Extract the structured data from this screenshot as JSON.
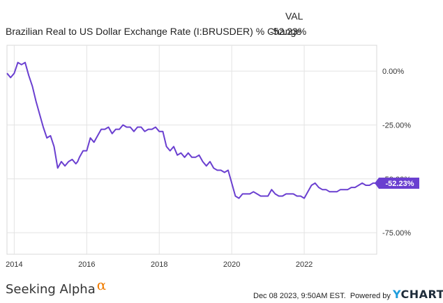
{
  "legend": {
    "header": "VAL",
    "series_label": "Brazilian Real to US Dollar Exchange Rate (I:BRUSDER) % Change",
    "series_value": "-52.23%"
  },
  "colors": {
    "series": "#6a3fd0",
    "grid": "#e3e3e3",
    "axis_text": "#333333",
    "badge": "#6a3fd0",
    "brand_alpha": "#f07c00",
    "ycharts_accent": "#1e9ddc"
  },
  "chart_data": {
    "type": "line",
    "title": "",
    "xlabel": "",
    "ylabel": "",
    "ylim": [
      -85,
      12
    ],
    "xlim": [
      2013.8,
      2024.0
    ],
    "grid": true,
    "y_ticks": [
      0,
      -25,
      -50,
      -75
    ],
    "y_tick_labels": [
      "0.00%",
      "-25.00%",
      "-50.00%",
      "-75.00%"
    ],
    "x_ticks": [
      2014,
      2016,
      2018,
      2020,
      2022
    ],
    "x_tick_labels": [
      "2014",
      "2016",
      "2018",
      "2020",
      "2022"
    ],
    "end_label": "-52.23%",
    "series": [
      {
        "name": "Brazilian Real to US Dollar Exchange Rate (I:BRUSDER) % Change",
        "x": [
          2013.8,
          2013.9,
          2014.0,
          2014.1,
          2014.2,
          2014.3,
          2014.4,
          2014.5,
          2014.6,
          2014.7,
          2014.8,
          2014.9,
          2015.0,
          2015.1,
          2015.2,
          2015.3,
          2015.4,
          2015.5,
          2015.6,
          2015.7,
          2015.75,
          2015.8,
          2015.9,
          2016.0,
          2016.1,
          2016.2,
          2016.3,
          2016.4,
          2016.5,
          2016.6,
          2016.7,
          2016.8,
          2016.9,
          2017.0,
          2017.1,
          2017.2,
          2017.3,
          2017.4,
          2017.5,
          2017.6,
          2017.7,
          2017.8,
          2017.9,
          2018.0,
          2018.1,
          2018.2,
          2018.3,
          2018.4,
          2018.5,
          2018.6,
          2018.7,
          2018.8,
          2018.9,
          2019.0,
          2019.1,
          2019.2,
          2019.3,
          2019.4,
          2019.5,
          2019.6,
          2019.7,
          2019.8,
          2019.9,
          2020.0,
          2020.1,
          2020.2,
          2020.3,
          2020.4,
          2020.5,
          2020.6,
          2020.7,
          2020.8,
          2020.9,
          2021.0,
          2021.1,
          2021.2,
          2021.3,
          2021.4,
          2021.5,
          2021.6,
          2021.7,
          2021.8,
          2021.9,
          2022.0,
          2022.1,
          2022.2,
          2022.3,
          2022.4,
          2022.5,
          2022.6,
          2022.7,
          2022.8,
          2022.9,
          2023.0,
          2023.1,
          2023.2,
          2023.3,
          2023.4,
          2023.5,
          2023.6,
          2023.7,
          2023.8,
          2023.9,
          2024.0
        ],
        "values": [
          -1,
          -3,
          -1,
          4,
          3,
          4,
          -2,
          -7,
          -14,
          -20,
          -26,
          -31,
          -30,
          -35,
          -45,
          -42,
          -44,
          -42,
          -41,
          -43,
          -42,
          -40,
          -37,
          -37,
          -31,
          -33,
          -30,
          -27,
          -27,
          -26,
          -29,
          -27,
          -27,
          -25,
          -26,
          -26,
          -28,
          -26,
          -26,
          -28,
          -27,
          -27,
          -26,
          -28,
          -28,
          -35,
          -37,
          -35,
          -39,
          -38,
          -40,
          -38,
          -40,
          -40,
          -39,
          -42,
          -44,
          -42,
          -45,
          -46,
          -46,
          -47,
          -46,
          -52,
          -58,
          -59,
          -57,
          -57,
          -57,
          -56,
          -57,
          -58,
          -58,
          -58,
          -55,
          -57,
          -58,
          -58,
          -57,
          -57,
          -57,
          -58,
          -58,
          -59,
          -56,
          -53,
          -52,
          -54,
          -55,
          -55,
          -56,
          -56,
          -56,
          -55,
          -55,
          -55,
          -54,
          -54,
          -53,
          -52,
          -53,
          -53,
          -52,
          -52
        ]
      }
    ]
  },
  "footer": {
    "brand": "Seeking Alpha",
    "brand_symbol": "α",
    "timestamp": "Dec 08 2023, 9:50AM EST.",
    "powered_by": "Powered by",
    "ycharts_y": "Y",
    "ycharts_rest": "CHARTS"
  }
}
